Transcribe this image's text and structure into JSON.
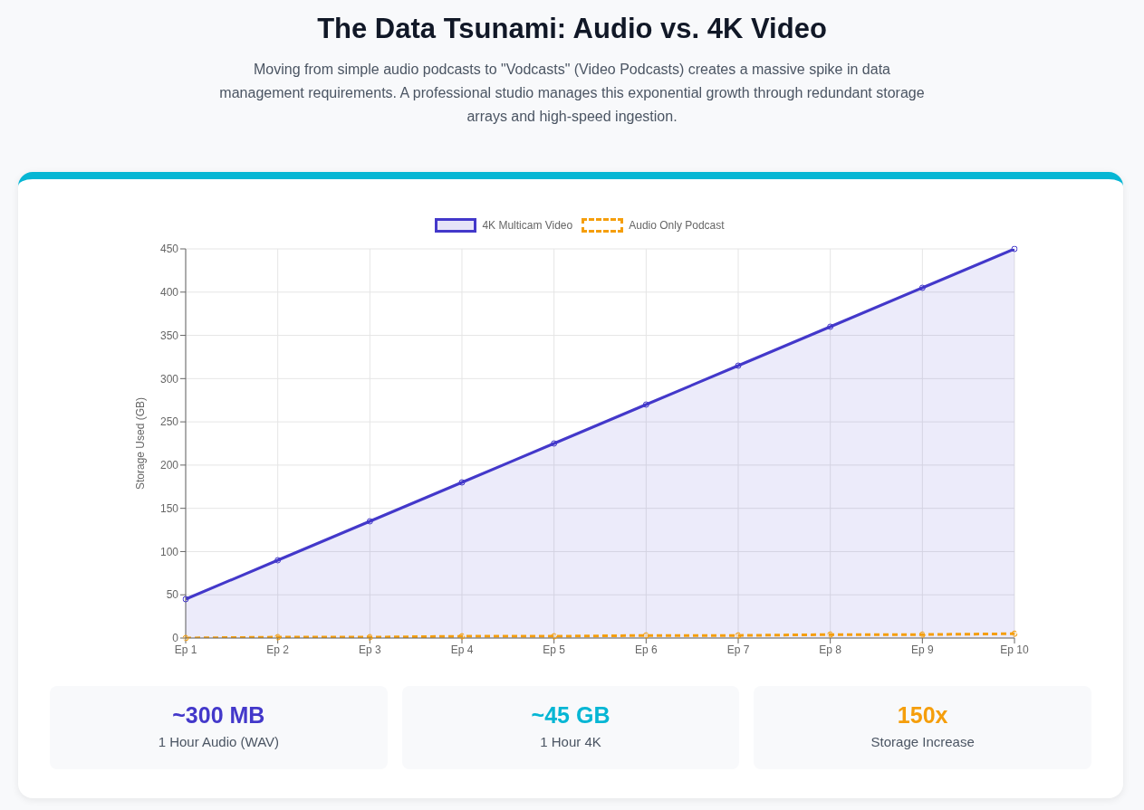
{
  "chart_data": [
    {
      "type": "line",
      "title": "The Data Tsunami: Audio vs. 4K Video",
      "subtitle": "Moving from simple audio podcasts to \"Vodcasts\" (Video Podcasts) creates a massive spike in data management requirements. A professional studio manages this exponential growth through redundant storage arrays and high-speed ingestion.",
      "ylabel": "Storage Used (GB)",
      "categories": [
        "Ep 1",
        "Ep 2",
        "Ep 3",
        "Ep 4",
        "Ep 5",
        "Ep 6",
        "Ep 7",
        "Ep 8",
        "Ep 9",
        "Ep 10"
      ],
      "series": [
        {
          "name": "4K Multicam Video",
          "type": "area",
          "color": "#4338ca",
          "line_style": "solid",
          "values": [
            45,
            90,
            135,
            180,
            225,
            270,
            315,
            360,
            405,
            450
          ]
        },
        {
          "name": "Audio Only Podcast",
          "type": "line",
          "color": "#f59e0b",
          "line_style": "dashed",
          "values": [
            0,
            1,
            1,
            2,
            2,
            3,
            3,
            4,
            4,
            5
          ]
        }
      ],
      "ylim": [
        0,
        450
      ],
      "yticks": [
        0,
        50,
        100,
        150,
        200,
        250,
        300,
        350,
        400,
        450
      ],
      "grid": true,
      "legend": "top",
      "marker": "circle"
    },
    {
      "type": "other",
      "annotations": [
        "~300 MB",
        "1 Hour Audio (WAV)",
        "~45 GB",
        "1 Hour 4K",
        "150x",
        "Storage Increase"
      ],
      "colors": [
        "#4338ca",
        "#06b6d4",
        "#f59e0b"
      ]
    }
  ]
}
